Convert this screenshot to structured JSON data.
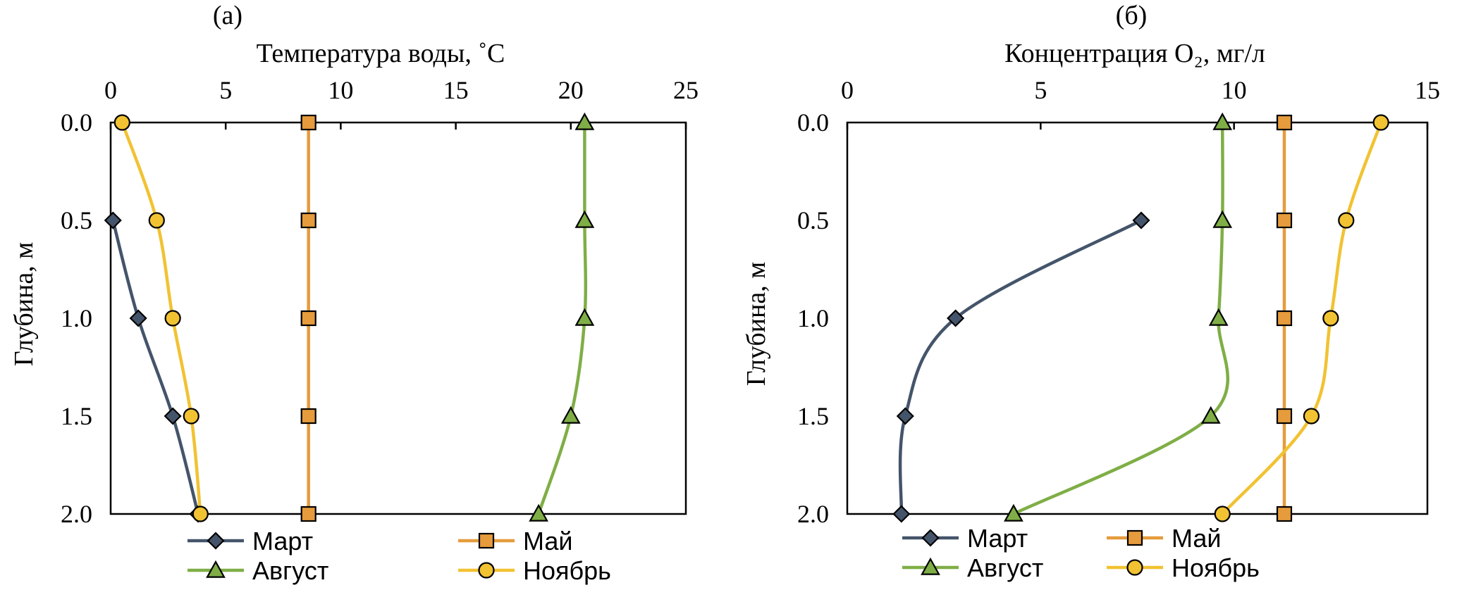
{
  "chart_data": [
    {
      "type": "line",
      "panel_label": "(а)",
      "xlabel": "Температура воды, ˚C",
      "ylabel": "Глубина, м",
      "xlim": [
        0,
        25
      ],
      "ylim": [
        0.0,
        2.0
      ],
      "y_inverted": true,
      "x_ticks": [
        "0",
        "5",
        "10",
        "15",
        "20",
        "25"
      ],
      "y_ticks": [
        "0.0",
        "0.5",
        "1.0",
        "1.5",
        "2.0"
      ],
      "x_axis_position": "top",
      "grid": false,
      "legend_position": "bottom",
      "series": [
        {
          "name": "Март",
          "marker": "diamond",
          "color": "#44546A",
          "x": [
            0.1,
            1.2,
            2.7,
            3.8
          ],
          "y": [
            0.5,
            1.0,
            1.5,
            2.0
          ]
        },
        {
          "name": "Май",
          "marker": "square",
          "color": "#E69B3C",
          "x": [
            8.6,
            8.6,
            8.6,
            8.6,
            8.6
          ],
          "y": [
            0.0,
            0.5,
            1.0,
            1.5,
            2.0
          ]
        },
        {
          "name": "Август",
          "marker": "triangle",
          "color": "#7FAE46",
          "x": [
            20.6,
            20.6,
            20.6,
            20.0,
            18.6
          ],
          "y": [
            0.0,
            0.5,
            1.0,
            1.5,
            2.0
          ]
        },
        {
          "name": "Ноябрь",
          "marker": "circle",
          "color": "#F1C232",
          "x": [
            0.5,
            2.0,
            2.7,
            3.5,
            3.9
          ],
          "y": [
            0.0,
            0.5,
            1.0,
            1.5,
            2.0
          ]
        }
      ]
    },
    {
      "type": "line",
      "panel_label": "(б)",
      "xlabel": "Концентрация O₂, мг/л",
      "ylabel": "Глубина, м",
      "xlim": [
        0,
        15
      ],
      "ylim": [
        0.0,
        2.0
      ],
      "y_inverted": true,
      "x_ticks": [
        "0",
        "5",
        "10",
        "15"
      ],
      "y_ticks": [
        "0.0",
        "0.5",
        "1.0",
        "1.5",
        "2.0"
      ],
      "x_axis_position": "top",
      "grid": false,
      "legend_position": "bottom",
      "series": [
        {
          "name": "Март",
          "marker": "diamond",
          "color": "#44546A",
          "x": [
            7.6,
            2.8,
            1.5,
            1.4
          ],
          "y": [
            0.5,
            1.0,
            1.5,
            2.0
          ]
        },
        {
          "name": "Май",
          "marker": "square",
          "color": "#E69B3C",
          "x": [
            11.3,
            11.3,
            11.3,
            11.3,
            11.3
          ],
          "y": [
            0.0,
            0.5,
            1.0,
            1.5,
            2.0
          ]
        },
        {
          "name": "Август",
          "marker": "triangle",
          "color": "#7FAE46",
          "x": [
            9.7,
            9.7,
            9.6,
            9.4,
            4.3
          ],
          "y": [
            0.0,
            0.5,
            1.0,
            1.5,
            2.0
          ]
        },
        {
          "name": "Ноябрь",
          "marker": "circle",
          "color": "#F1C232",
          "x": [
            13.8,
            12.9,
            12.5,
            12.0,
            9.7
          ],
          "y": [
            0.0,
            0.5,
            1.0,
            1.5,
            2.0
          ]
        }
      ]
    }
  ]
}
